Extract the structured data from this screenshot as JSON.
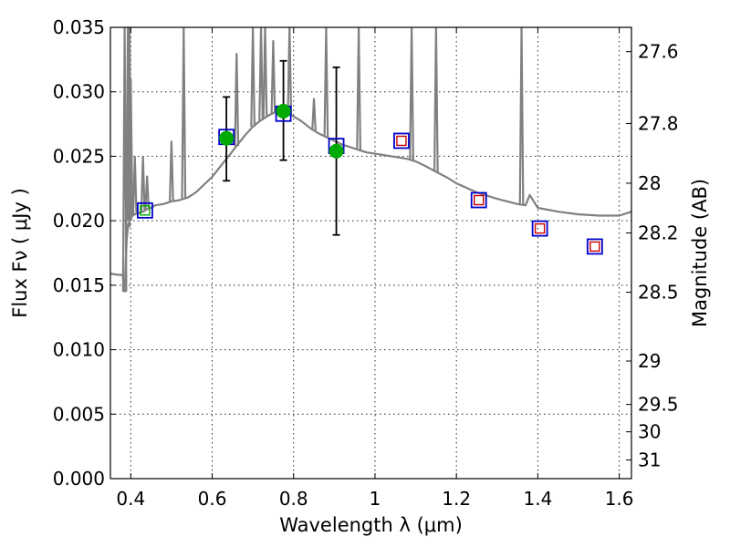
{
  "chart_data": {
    "type": "scatter",
    "title": "",
    "xlabel": "Wavelength  λ (μm)",
    "ylabel": "Flux  Fν  ( μJy )",
    "y2label": "Magnitude (AB)",
    "xlim": [
      0.35,
      1.63
    ],
    "ylim": [
      0.0,
      0.035
    ],
    "grid": true,
    "x_ticks": [
      0.4,
      0.6,
      0.8,
      1.0,
      1.2,
      1.4,
      1.6
    ],
    "x_tick_labels": [
      "0.4",
      "0.6",
      "0.8",
      "1",
      "1.2",
      "1.4",
      "1.6"
    ],
    "y_ticks": [
      0.0,
      0.005,
      0.01,
      0.015,
      0.02,
      0.025,
      0.03,
      0.035
    ],
    "y_tick_labels": [
      "0.000",
      "0.005",
      "0.010",
      "0.015",
      "0.020",
      "0.025",
      "0.030",
      "0.035"
    ],
    "y2_ticks": [
      27.6,
      27.8,
      28.0,
      28.2,
      28.5,
      29.0,
      29.5,
      30.0,
      31.0
    ],
    "y2_tick_labels": [
      "27.6",
      "27.8",
      "28",
      "28.2",
      "28.5",
      "29",
      "29.5",
      "30",
      "31"
    ],
    "colors": {
      "sed": "#808080",
      "observed": "#00aa00",
      "model_box": "#0000cc",
      "model_inner": "#cc0000",
      "errorbar": "#000000"
    },
    "series": [
      {
        "kind": "line",
        "x": [
          0.35,
          0.37,
          0.38,
          0.385,
          0.39,
          0.393,
          0.396,
          0.4,
          0.405,
          0.41,
          0.42,
          0.43,
          0.44,
          0.45,
          0.46,
          0.48,
          0.5,
          0.52,
          0.53,
          0.54,
          0.56,
          0.58,
          0.6,
          0.62,
          0.64,
          0.66,
          0.68,
          0.7,
          0.72,
          0.74,
          0.76,
          0.78,
          0.8,
          0.82,
          0.84,
          0.86,
          0.88,
          0.9,
          0.92,
          0.94,
          0.96,
          0.98,
          1.0,
          1.02,
          1.04,
          1.06,
          1.08,
          1.1,
          1.12,
          1.15,
          1.18,
          1.2,
          1.25,
          1.3,
          1.35,
          1.37,
          1.38,
          1.4,
          1.45,
          1.5,
          1.55,
          1.6,
          1.63
        ],
        "y": [
          0.0159,
          0.0158,
          0.0158,
          0.0145,
          0.0185,
          0.0195,
          0.0199,
          0.0203,
          0.0204,
          0.0205,
          0.0206,
          0.0207,
          0.0209,
          0.021,
          0.0212,
          0.0213,
          0.0215,
          0.0216,
          0.0217,
          0.0218,
          0.0222,
          0.0228,
          0.0234,
          0.0242,
          0.025,
          0.0258,
          0.0266,
          0.0273,
          0.0278,
          0.0282,
          0.0285,
          0.0284,
          0.0281,
          0.0277,
          0.0272,
          0.0268,
          0.0265,
          0.0262,
          0.0259,
          0.0257,
          0.0255,
          0.0253,
          0.0252,
          0.0251,
          0.025,
          0.0249,
          0.0248,
          0.0246,
          0.0243,
          0.0238,
          0.0233,
          0.0229,
          0.0222,
          0.0217,
          0.0213,
          0.0212,
          0.022,
          0.021,
          0.0207,
          0.0205,
          0.0204,
          0.0204,
          0.0207
        ]
      },
      {
        "kind": "spikes",
        "x": [
          0.385,
          0.393,
          0.397,
          0.4,
          0.41,
          0.43,
          0.44,
          0.5,
          0.53,
          0.66,
          0.7,
          0.72,
          0.73,
          0.75,
          0.79,
          0.85,
          0.88,
          0.96,
          1.09,
          1.15,
          1.36
        ],
        "y": [
          0.035,
          0.035,
          0.035,
          0.031,
          0.025,
          0.025,
          0.0235,
          0.0262,
          0.035,
          0.033,
          0.035,
          0.035,
          0.035,
          0.034,
          0.035,
          0.0295,
          0.035,
          0.035,
          0.035,
          0.035,
          0.035
        ]
      },
      {
        "kind": "errorbar",
        "marker": "circle",
        "x": [
          0.635,
          0.775,
          0.905
        ],
        "y": [
          0.0264,
          0.0285,
          0.0254
        ],
        "yerr_low": [
          0.0033,
          0.0038,
          0.0065
        ],
        "yerr_high": [
          0.0032,
          0.0039,
          0.0065
        ]
      },
      {
        "kind": "scatter",
        "marker": "square-open",
        "x": [
          0.435,
          0.635,
          0.775,
          0.905,
          1.065,
          1.255,
          1.405,
          1.54
        ],
        "y": [
          0.0208,
          0.0265,
          0.0283,
          0.0258,
          0.0262,
          0.0216,
          0.0194,
          0.018
        ]
      },
      {
        "kind": "scatter",
        "marker": "square-small-inner",
        "x": [
          1.065,
          1.255,
          1.405,
          1.54
        ],
        "y": [
          0.0262,
          0.0216,
          0.0194,
          0.018
        ]
      },
      {
        "kind": "scatter",
        "marker": "square-green-inner",
        "x": [
          0.435
        ],
        "y": [
          0.0208
        ]
      }
    ]
  }
}
